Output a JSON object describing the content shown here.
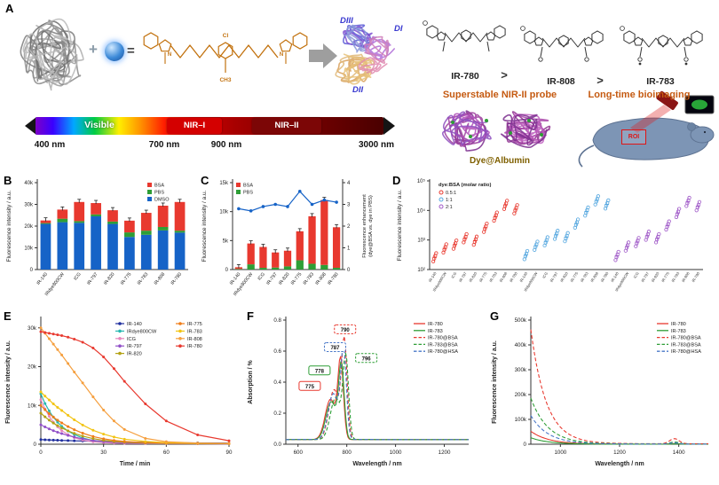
{
  "panels": {
    "A": "A",
    "B": "B",
    "C": "C",
    "D": "D",
    "E": "E",
    "F": "F",
    "G": "G"
  },
  "panelA": {
    "plus": "+",
    "equals": "=",
    "domains": {
      "d3": "DIII",
      "d1": "DI",
      "d2": "DII"
    },
    "structure_labels": {
      "cl": "Cl",
      "ch3": "CH3",
      "n1": "N",
      "n2": "N"
    },
    "spectrum": {
      "visible_label": "Visible",
      "nir1_label": "NIR–I",
      "nir2_label": "NIR–II",
      "tick_400": "400 nm",
      "tick_700": "700 nm",
      "tick_900": "900 nm",
      "tick_3000": "3000 nm"
    },
    "comparison": {
      "dye1": "IR-780",
      "gt1": ">",
      "dye2": "IR-808",
      "gt2": ">",
      "dye3": "IR-783"
    },
    "probe_title": "Superstable NIR-II probe",
    "imaging_title": "Long-time bioimaging",
    "albumin_label": "Dye@Albumin",
    "roi_label": "ROI"
  },
  "chart_data": [
    {
      "id": "B",
      "type": "bar",
      "stacked": true,
      "ylabel": "Fluorescence intensity / a.u.",
      "ylim": [
        0,
        40000
      ],
      "yticks": [
        0,
        10000,
        20000,
        30000,
        40000
      ],
      "ytick_labels": [
        "0",
        "10k",
        "20k",
        "30k",
        "40k"
      ],
      "categories": [
        "IR-140",
        "IRdye800CW",
        "ICG",
        "IR-797",
        "IR-820",
        "IR-775",
        "IR-783",
        "IR-808",
        "IR-780"
      ],
      "series": [
        {
          "name": "BSA",
          "color": "#e8392f",
          "values": [
            1200,
            4200,
            8800,
            5200,
            5200,
            5400,
            8200,
            9800,
            13200
          ]
        },
        {
          "name": "PBS",
          "color": "#2e9e36",
          "values": [
            400,
            1600,
            800,
            900,
            1100,
            2100,
            1900,
            1600,
            900
          ]
        },
        {
          "name": "DMSO",
          "color": "#1663c7",
          "values": [
            21000,
            21800,
            21500,
            24500,
            21000,
            15000,
            16000,
            18000,
            17000
          ]
        }
      ]
    },
    {
      "id": "C",
      "type": "bar-line",
      "stacked": true,
      "ylabel": "Fluorescence intensity / a.u.",
      "ylabel_right_1": "Fluorescence enhancement",
      "ylabel_right_2": "(dye@BSA vs. dye in PBS)",
      "ylim": [
        0,
        15000
      ],
      "yticks": [
        0,
        5000,
        10000,
        15000
      ],
      "ytick_labels": [
        "0",
        "5k",
        "10k",
        "15k"
      ],
      "ylim_right": [
        0,
        4
      ],
      "right_ticks": [
        0,
        1,
        2,
        3,
        4
      ],
      "categories": [
        "IR-140",
        "IRdye800CW",
        "ICG",
        "IR-797",
        "IR-820",
        "IR-775",
        "IR-783",
        "IR-808",
        "IR-780"
      ],
      "series": [
        {
          "name": "BSA",
          "color": "#e8392f",
          "values": [
            300,
            3600,
            3600,
            2600,
            2700,
            5000,
            8200,
            11200,
            7000
          ]
        },
        {
          "name": "PBS",
          "color": "#2e9e36",
          "values": [
            100,
            900,
            300,
            350,
            550,
            1600,
            1000,
            800,
            300
          ]
        }
      ],
      "line": {
        "name": "enhancement",
        "color": "#1663c7",
        "values": [
          2.8,
          2.7,
          2.9,
          3.0,
          2.9,
          3.6,
          3.0,
          3.2,
          3.1
        ]
      }
    },
    {
      "id": "D",
      "type": "scatter",
      "log_scale": true,
      "ylabel": "Fluorescence intensity / a.u.",
      "ylim": [
        100,
        100000
      ],
      "yticks": [
        100,
        1000,
        10000,
        100000
      ],
      "ytick_labels": [
        "10²",
        "10³",
        "10⁴",
        "10⁵"
      ],
      "legend_title": "dye:BSA (molar ratio)",
      "categories": [
        "IR-140",
        "IRdye800CW",
        "ICG",
        "IR-797",
        "IR-820",
        "IR-775",
        "IR-783",
        "IR-808",
        "IR-780"
      ],
      "groups": [
        {
          "name": "0.5:1",
          "color": "#e8392f",
          "means": [
            260,
            520,
            700,
            1150,
            950,
            2600,
            6200,
            15500,
            11000
          ]
        },
        {
          "name": "1:1",
          "color": "#56a8e0",
          "means": [
            310,
            640,
            900,
            1500,
            1250,
            3600,
            9200,
            22000,
            16000
          ]
        },
        {
          "name": "2:1",
          "color": "#a05ac8",
          "means": [
            290,
            600,
            850,
            1400,
            1150,
            3100,
            8200,
            19500,
            14000
          ]
        }
      ]
    },
    {
      "id": "E",
      "type": "line",
      "xlabel": "Time / min",
      "ylabel": "Fluorescence intensity / a.u.",
      "xlim": [
        0,
        90
      ],
      "xticks": [
        0,
        30,
        60,
        90
      ],
      "ylim": [
        0,
        32000
      ],
      "yticks": [
        0,
        10000,
        20000,
        30000
      ],
      "ytick_labels": [
        "0",
        "10k",
        "20k",
        "30k"
      ],
      "x": [
        0,
        2,
        4,
        6,
        8,
        10,
        13,
        16,
        20,
        25,
        30,
        35,
        40,
        50,
        60,
        75,
        90
      ],
      "series": [
        {
          "name": "IR-140",
          "color": "#1f2f9e",
          "values": [
            1200,
            1150,
            1100,
            1060,
            1020,
            980,
            930,
            880,
            820,
            750,
            690,
            630,
            580,
            490,
            420,
            330,
            270
          ]
        },
        {
          "name": "IRdye800CW",
          "color": "#28b8b0",
          "values": [
            13000,
            10500,
            8600,
            7000,
            5700,
            4600,
            3400,
            2500,
            1600,
            950,
            600,
            420,
            320,
            220,
            170,
            130,
            110
          ]
        },
        {
          "name": "ICG",
          "color": "#e886bc",
          "values": [
            11500,
            9100,
            7200,
            5700,
            4500,
            3500,
            2500,
            1700,
            1050,
            620,
            420,
            300,
            230,
            160,
            130,
            110,
            100
          ]
        },
        {
          "name": "IR-797",
          "color": "#9150c8",
          "values": [
            5000,
            4450,
            3950,
            3500,
            3100,
            2750,
            2250,
            1850,
            1400,
            980,
            700,
            510,
            390,
            260,
            200,
            150,
            120
          ]
        },
        {
          "name": "IR-820",
          "color": "#b3a214",
          "values": [
            8000,
            7050,
            6200,
            5450,
            4800,
            4200,
            3450,
            2800,
            2100,
            1450,
            1000,
            700,
            520,
            320,
            230,
            160,
            130
          ]
        },
        {
          "name": "IR-775",
          "color": "#ef7d18",
          "values": [
            10000,
            8900,
            7900,
            7000,
            6200,
            5500,
            4550,
            3750,
            2850,
            2000,
            1400,
            980,
            700,
            420,
            290,
            190,
            140
          ]
        },
        {
          "name": "IR-783",
          "color": "#f2c414",
          "values": [
            13500,
            12400,
            11400,
            10400,
            9500,
            8700,
            7450,
            6300,
            4950,
            3600,
            2600,
            1850,
            1300,
            700,
            420,
            250,
            180
          ]
        },
        {
          "name": "IR-808",
          "color": "#f59f3e",
          "values": [
            30000,
            28600,
            27200,
            25800,
            24400,
            23000,
            20800,
            18600,
            15800,
            12200,
            8800,
            6000,
            3800,
            1500,
            650,
            300,
            220
          ]
        },
        {
          "name": "IR-780",
          "color": "#e8392f",
          "values": [
            29000,
            28800,
            28600,
            28400,
            28200,
            28000,
            27600,
            27100,
            26300,
            24800,
            22500,
            19500,
            16200,
            10400,
            6000,
            2400,
            900
          ]
        }
      ]
    },
    {
      "id": "F",
      "type": "spectra",
      "xlabel": "Wavelength / nm",
      "ylabel": "Absorption / %",
      "xlim": [
        550,
        1300
      ],
      "xticks": [
        600,
        800,
        1000,
        1200
      ],
      "yticks": [
        0,
        0.2,
        0.4,
        0.6,
        0.8
      ],
      "ytick_labels": [
        "0.0",
        "0.2",
        "0.4",
        "0.6",
        "0.8"
      ],
      "ylim": [
        0,
        0.8
      ],
      "series": [
        {
          "name": "IR-780",
          "color": "#e8392f",
          "dash": false,
          "peak_nm": 775,
          "max_absorption": 0.5
        },
        {
          "name": "IR-783",
          "color": "#2e9e36",
          "dash": false,
          "peak_nm": 778,
          "max_absorption": 0.47
        },
        {
          "name": "IR-780@BSA",
          "color": "#e8392f",
          "dash": true,
          "peak_nm": 790,
          "max_absorption": 0.62
        },
        {
          "name": "IR-783@BSA",
          "color": "#2e9e36",
          "dash": true,
          "peak_nm": 796,
          "max_absorption": 0.52
        },
        {
          "name": "IR-780@HSA",
          "color": "#4a78c8",
          "dash": true,
          "peak_nm": 787,
          "max_absorption": 0.57
        }
      ],
      "peak_labels": [
        {
          "text": "775",
          "wl": 648,
          "abs": 0.37,
          "color": "#e8392f",
          "dash": false
        },
        {
          "text": "778",
          "wl": 688,
          "abs": 0.47,
          "color": "#2e9e36",
          "dash": false
        },
        {
          "text": "787",
          "wl": 752,
          "abs": 0.62,
          "color": "#4a78c8",
          "dash": true
        },
        {
          "text": "790",
          "wl": 793,
          "abs": 0.735,
          "color": "#e8392f",
          "dash": true
        },
        {
          "text": "796",
          "wl": 880,
          "abs": 0.55,
          "color": "#2e9e36",
          "dash": true
        }
      ]
    },
    {
      "id": "G",
      "type": "emission",
      "xlabel": "Wavelength / nm",
      "ylabel": "Fluorescence intensity / a.u.",
      "xlim": [
        900,
        1500
      ],
      "xticks": [
        1000,
        1200,
        1400
      ],
      "ylim": [
        0,
        500000
      ],
      "yticks": [
        0,
        100000,
        200000,
        300000,
        400000,
        500000
      ],
      "ytick_labels": [
        "0",
        "100k",
        "200k",
        "300k",
        "400k",
        "500k"
      ],
      "series": [
        {
          "name": "IR-780",
          "color": "#e8392f",
          "dash": false,
          "intensity_at_900": 52000,
          "decay_tau_nm": 60
        },
        {
          "name": "IR-783",
          "color": "#2e9e36",
          "dash": false,
          "intensity_at_900": 26000,
          "decay_tau_nm": 60
        },
        {
          "name": "IR-780@BSA",
          "color": "#e8392f",
          "dash": true,
          "intensity_at_900": 460000,
          "decay_tau_nm": 52
        },
        {
          "name": "IR-783@BSA",
          "color": "#2e9e36",
          "dash": true,
          "intensity_at_900": 185000,
          "decay_tau_nm": 58
        },
        {
          "name": "IR-780@HSA",
          "color": "#4a78c8",
          "dash": true,
          "intensity_at_900": 115000,
          "decay_tau_nm": 58
        }
      ]
    }
  ]
}
